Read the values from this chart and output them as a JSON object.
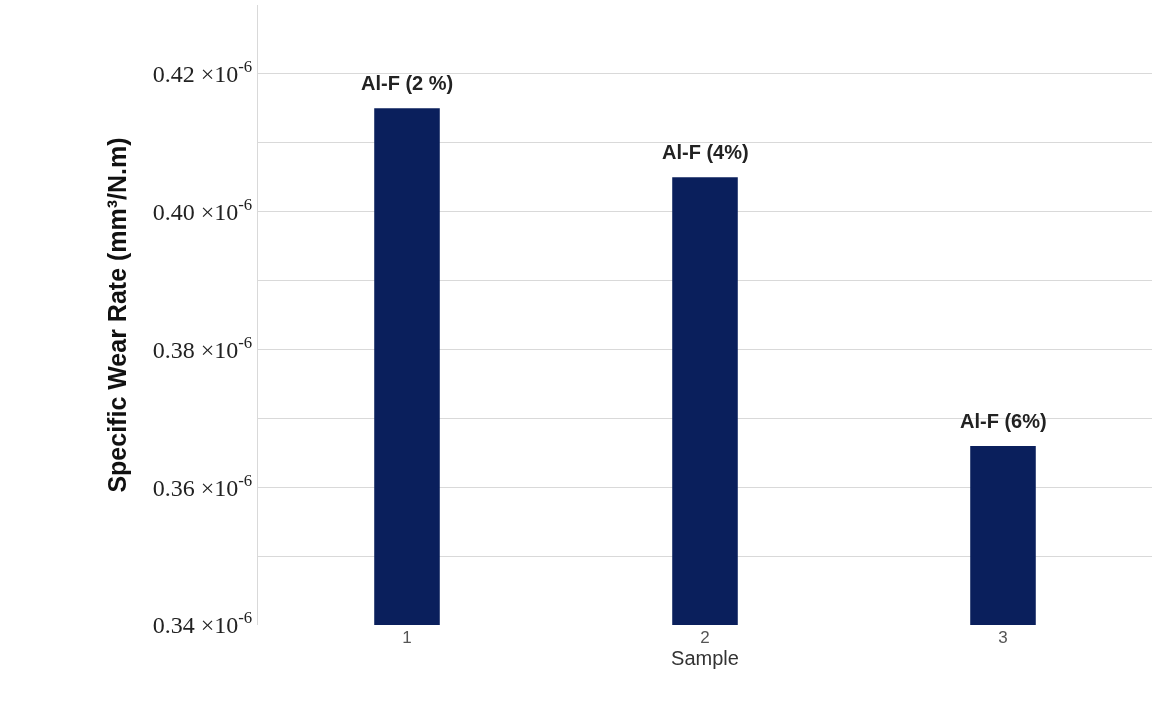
{
  "chart_data": {
    "type": "bar",
    "xlabel": "Sample",
    "ylabel": "Specific Wear Rate (mm³/N.m)",
    "categories": [
      "1",
      "2",
      "3"
    ],
    "values": [
      4.15e-07,
      4.05e-07,
      3.66e-07
    ],
    "color": "#0a1f5c",
    "ylim": [
      3.4e-07,
      4.3e-07
    ],
    "yticks": [
      {
        "value": 3.4e-07,
        "label": "0.34 ×10$^{-6}$"
      },
      {
        "value": 3.5e-07,
        "label": null
      },
      {
        "value": 3.6e-07,
        "label": "0.36 ×10$^{-6}$"
      },
      {
        "value": 3.7e-07,
        "label": null
      },
      {
        "value": 3.8e-07,
        "label": "0.38 ×10$^{-6}$"
      },
      {
        "value": 3.9e-07,
        "label": null
      },
      {
        "value": 4e-07,
        "label": "0.40 ×10$^{-6}$"
      },
      {
        "value": 4.1e-07,
        "label": null
      },
      {
        "value": 4.2e-07,
        "label": "0.42 ×10$^{-6}$"
      }
    ],
    "grid": "y",
    "annotations": [
      {
        "text": "Al-F (2 %)",
        "x": "1",
        "y": 4.15e-07
      },
      {
        "text": "Al-F (4%)",
        "x": "2",
        "y": 4.05e-07
      },
      {
        "text": "Al-F (6%)",
        "x": "3",
        "y": 3.66e-07
      }
    ]
  }
}
